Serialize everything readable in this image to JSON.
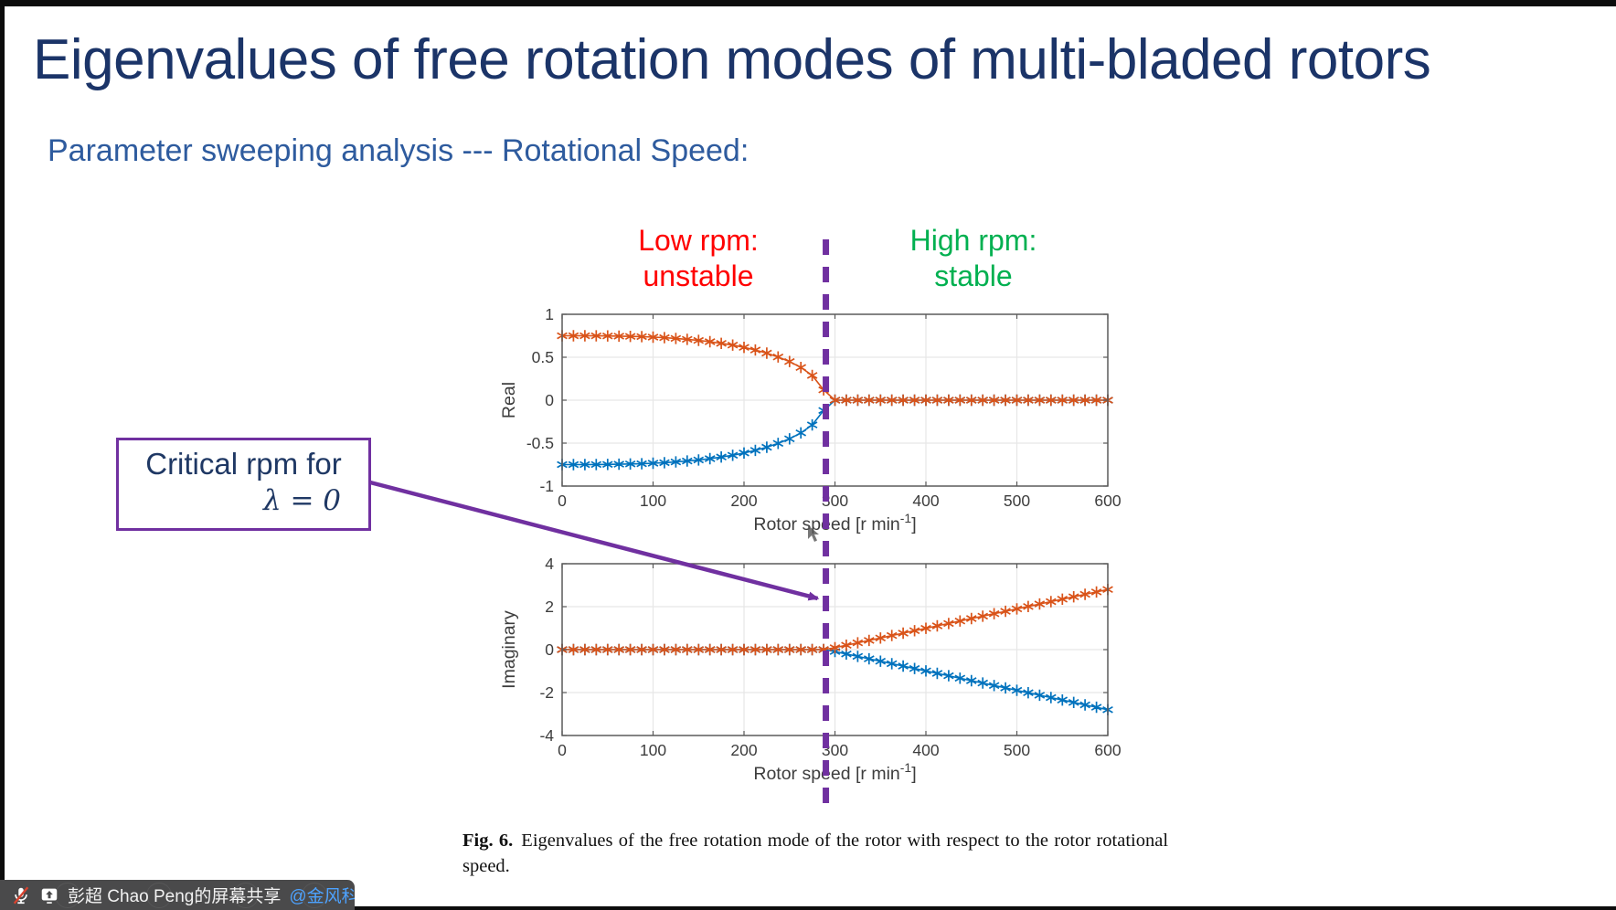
{
  "slide": {
    "title": "Eigenvalues of free rotation modes of multi-bladed rotors",
    "subtitle": "Parameter sweeping analysis --- Rotational Speed:"
  },
  "annotations": {
    "low_rpm_line1": "Low rpm:",
    "low_rpm_line2": "unstable",
    "high_rpm_line1": "High rpm:",
    "high_rpm_line2": "stable",
    "critical_line1": "Critical rpm for",
    "critical_line2": "λ = 0",
    "critical_rpm": 290
  },
  "caption": {
    "label": "Fig. 6.",
    "text": "Eigenvalues of the free rotation mode of the rotor with respect to the rotor rotational speed."
  },
  "statusbar": {
    "share_text": "彭超 Chao Peng的屏幕共享",
    "mention": "@金风科技",
    "icons": [
      "mic-muted-icon",
      "screen-share-icon"
    ]
  },
  "colors": {
    "title": "#1b3468",
    "subtitle": "#2e5b9e",
    "unstable_red": "#ff0000",
    "stable_green": "#00b050",
    "purple": "#7030a0",
    "series_upper": "#d95319",
    "series_lower": "#0072bd",
    "statusbar_bg": "#4a4a4b",
    "mention_blue": "#4da2ff"
  },
  "chart_data": [
    {
      "type": "line",
      "title": "",
      "ylabel": "Real",
      "xlabel": {
        "prefix": "Rotor speed [r min",
        "sup": "-1",
        "suffix": "]"
      },
      "xlim": [
        0,
        600
      ],
      "ylim": [
        -1,
        1
      ],
      "xticks": [
        0,
        100,
        200,
        300,
        400,
        500,
        600
      ],
      "yticks": [
        1,
        0.5,
        0,
        -0.5,
        -1
      ],
      "grid": true,
      "legend": null,
      "x": [
        0,
        12.5,
        25,
        37.5,
        50,
        62.5,
        75,
        87.5,
        100,
        112.5,
        125,
        137.5,
        150,
        162.5,
        175,
        187.5,
        200,
        212.5,
        225,
        237.5,
        250,
        262.5,
        275,
        287.5,
        300,
        312.5,
        325,
        337.5,
        350,
        362.5,
        375,
        387.5,
        400,
        412.5,
        425,
        437.5,
        450,
        462.5,
        475,
        487.5,
        500,
        512.5,
        525,
        537.5,
        550,
        562.5,
        575,
        587.5,
        600
      ],
      "series": [
        {
          "name": "real-part-branch-lower",
          "color": "#0072bd",
          "values": [
            -0.75,
            -0.75,
            -0.75,
            -0.749,
            -0.748,
            -0.746,
            -0.743,
            -0.74,
            -0.734,
            -0.728,
            -0.719,
            -0.709,
            -0.696,
            -0.681,
            -0.662,
            -0.641,
            -0.615,
            -0.584,
            -0.548,
            -0.503,
            -0.45,
            -0.381,
            -0.288,
            -0.12,
            0,
            0,
            0,
            0,
            0,
            0,
            0,
            0,
            0,
            0,
            0,
            0,
            0,
            0,
            0,
            0,
            0,
            0,
            0,
            0,
            0,
            0,
            0,
            0,
            0
          ]
        },
        {
          "name": "real-part-branch-upper",
          "color": "#d95319",
          "values": [
            0.75,
            0.75,
            0.75,
            0.749,
            0.748,
            0.746,
            0.743,
            0.74,
            0.734,
            0.728,
            0.719,
            0.709,
            0.696,
            0.681,
            0.662,
            0.641,
            0.615,
            0.584,
            0.548,
            0.503,
            0.45,
            0.381,
            0.288,
            0.12,
            0,
            0,
            0,
            0,
            0,
            0,
            0,
            0,
            0,
            0,
            0,
            0,
            0,
            0,
            0,
            0,
            0,
            0,
            0,
            0,
            0,
            0,
            0,
            0,
            0
          ]
        }
      ]
    },
    {
      "type": "line",
      "title": "",
      "ylabel": "Imaginary",
      "xlabel": {
        "prefix": "Rotor speed [r min",
        "sup": "-1",
        "suffix": "]"
      },
      "xlim": [
        0,
        600
      ],
      "ylim": [
        -4,
        4
      ],
      "xticks": [
        0,
        100,
        200,
        300,
        400,
        500,
        600
      ],
      "yticks": [
        4,
        2,
        0,
        -2,
        -4
      ],
      "grid": true,
      "legend": null,
      "x": [
        0,
        12.5,
        25,
        37.5,
        50,
        62.5,
        75,
        87.5,
        100,
        112.5,
        125,
        137.5,
        150,
        162.5,
        175,
        187.5,
        200,
        212.5,
        225,
        237.5,
        250,
        262.5,
        275,
        287.5,
        300,
        312.5,
        325,
        337.5,
        350,
        362.5,
        375,
        387.5,
        400,
        412.5,
        425,
        437.5,
        450,
        462.5,
        475,
        487.5,
        500,
        512.5,
        525,
        537.5,
        550,
        562.5,
        575,
        587.5,
        600
      ],
      "series": [
        {
          "name": "imaginary-part-branch-lower",
          "color": "#0072bd",
          "values": [
            0,
            0,
            0,
            0,
            0,
            0,
            0,
            0,
            0,
            0,
            0,
            0,
            0,
            0,
            0,
            0,
            0,
            0,
            0,
            0,
            0,
            0,
            0,
            0,
            -0.09,
            -0.203,
            -0.316,
            -0.429,
            -0.542,
            -0.655,
            -0.768,
            -0.88,
            -0.993,
            -1.106,
            -1.219,
            -1.332,
            -1.445,
            -1.558,
            -1.671,
            -1.783,
            -1.896,
            -2.009,
            -2.122,
            -2.235,
            -2.348,
            -2.461,
            -2.574,
            -2.686,
            -2.799
          ]
        },
        {
          "name": "imaginary-part-branch-upper",
          "color": "#d95319",
          "values": [
            0,
            0,
            0,
            0,
            0,
            0,
            0,
            0,
            0,
            0,
            0,
            0,
            0,
            0,
            0,
            0,
            0,
            0,
            0,
            0,
            0,
            0,
            0,
            0,
            0.09,
            0.203,
            0.316,
            0.429,
            0.542,
            0.655,
            0.768,
            0.88,
            0.993,
            1.106,
            1.219,
            1.332,
            1.445,
            1.558,
            1.671,
            1.783,
            1.896,
            2.009,
            2.122,
            2.235,
            2.348,
            2.461,
            2.574,
            2.686,
            2.799
          ]
        }
      ]
    }
  ]
}
